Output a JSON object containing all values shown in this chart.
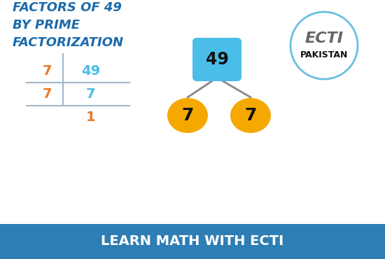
{
  "title_line1": "FACTORS OF 49",
  "title_line2": "BY PRIME",
  "title_line3": "FACTORIZATION",
  "title_color": "#1b6aab",
  "bg_color": "#ffffff",
  "footer_text": "LEARN MATH WITH ECTI",
  "footer_bg": "#2e7eb5",
  "footer_text_color": "#ffffff",
  "table_col1": [
    "7",
    "7"
  ],
  "table_col2": [
    "49",
    "7",
    "1"
  ],
  "table_col1_color": "#e87b2a",
  "table_col2_color": "#4abde8",
  "last_val_color": "#e87b2a",
  "tree_root_val": "49",
  "tree_root_bg": "#4abde8",
  "tree_leaf_val": "7",
  "tree_leaf_bg": "#f5a800",
  "tree_leaf_text_color": "#111111",
  "line_color": "#888888",
  "ecti_circle_color": "#6bbfe0",
  "ecti_text": "ECTI",
  "ecti_sub": "PAKISTAN",
  "title_fontsize": 13,
  "table_fontsize": 14,
  "footer_fontsize": 14
}
